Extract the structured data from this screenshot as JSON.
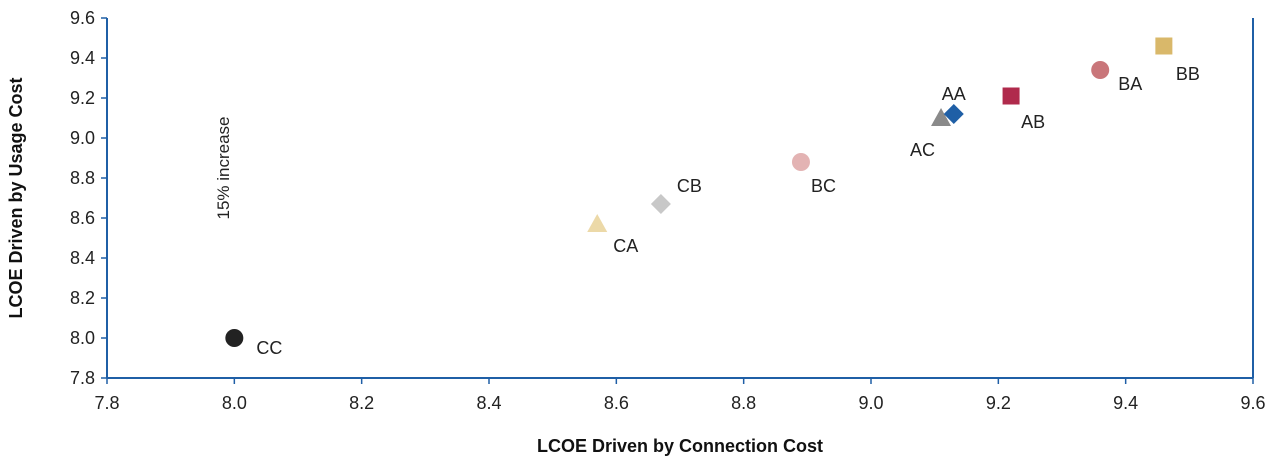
{
  "chart_data": {
    "type": "scatter",
    "xlabel": "LCOE Driven by Connection Cost",
    "ylabel": "LCOE Driven by Usage Cost",
    "xlim": [
      7.8,
      9.6
    ],
    "ylim": [
      7.8,
      9.6
    ],
    "x_ticks": [
      "7.8",
      "8.0",
      "8.2",
      "8.4",
      "8.6",
      "8.8",
      "9.0",
      "9.2",
      "9.4",
      "9.6"
    ],
    "y_ticks": [
      "7.8",
      "8.0",
      "8.2",
      "8.4",
      "8.6",
      "8.8",
      "9.0",
      "9.2",
      "9.4",
      "9.6"
    ],
    "grid": false,
    "annotation": "15% increase",
    "axis_color": "#1f5fa6",
    "points": [
      {
        "label": "CC",
        "x": 8.0,
        "y": 8.0,
        "marker": "circle",
        "color": "#222222"
      },
      {
        "label": "CA",
        "x": 8.57,
        "y": 8.57,
        "marker": "triangle",
        "color": "#ecd9a8"
      },
      {
        "label": "CB",
        "x": 8.67,
        "y": 8.67,
        "marker": "diamond",
        "color": "#c8c8c8"
      },
      {
        "label": "BC",
        "x": 8.89,
        "y": 8.88,
        "marker": "circle",
        "color": "#e3b3b3"
      },
      {
        "label": "AC",
        "x": 9.11,
        "y": 9.1,
        "marker": "triangle",
        "color": "#8a8a8a"
      },
      {
        "label": "AA",
        "x": 9.13,
        "y": 9.12,
        "marker": "diamond",
        "color": "#1f5fa6"
      },
      {
        "label": "AB",
        "x": 9.22,
        "y": 9.21,
        "marker": "square",
        "color": "#b02a4c"
      },
      {
        "label": "BA",
        "x": 9.36,
        "y": 9.34,
        "marker": "circle",
        "color": "#c9767a"
      },
      {
        "label": "BB",
        "x": 9.46,
        "y": 9.46,
        "marker": "square",
        "color": "#d9b86a"
      }
    ]
  }
}
